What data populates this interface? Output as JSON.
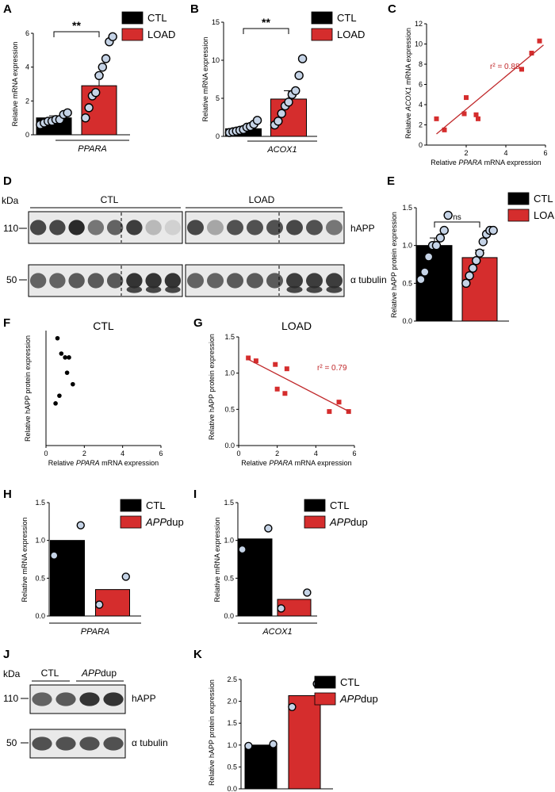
{
  "colors": {
    "ctl": "#000000",
    "case": "#d52d2d",
    "dot_fill": "#c5d3e6",
    "reg": "#c0282a",
    "blot_dark": "#2a2a2a",
    "blot_bg": "#e9e9e9"
  },
  "chart_data": [
    {
      "id": "A",
      "panel_label": "A",
      "type": "bar",
      "categories": [
        "CTL",
        "LOAD"
      ],
      "values": [
        1.0,
        2.9
      ],
      "errors": [
        0.12,
        0.65
      ],
      "points": [
        [
          0.6,
          0.7,
          0.8,
          0.8,
          0.9,
          0.9,
          1.2,
          1.3
        ],
        [
          1.0,
          1.6,
          2.3,
          2.5,
          3.5,
          4.0,
          4.5,
          5.5,
          5.8
        ]
      ],
      "ylabel": "Relative  mRNA expression",
      "xlabel": "PPARA",
      "ylim": [
        0,
        6
      ],
      "yticks": [
        0,
        2,
        4,
        6
      ],
      "significance": "**",
      "legend": [
        "CTL",
        "LOAD"
      ]
    },
    {
      "id": "B",
      "panel_label": "B",
      "type": "bar",
      "categories": [
        "CTL",
        "LOAD"
      ],
      "values": [
        1.0,
        4.9
      ],
      "errors": [
        0.15,
        1.1
      ],
      "points": [
        [
          0.5,
          0.6,
          0.7,
          0.8,
          0.9,
          1.2,
          1.3,
          1.6,
          2.1
        ],
        [
          1.5,
          2.0,
          3.0,
          4.0,
          4.5,
          5.5,
          6.0,
          8.0,
          10.2
        ]
      ],
      "ylabel": "Relative  mRNA expression",
      "xlabel": "ACOX1",
      "ylim": [
        0,
        15
      ],
      "yticks": [
        0,
        5,
        10,
        15
      ],
      "significance": "**",
      "legend": [
        "CTL",
        "LOAD"
      ]
    },
    {
      "id": "C",
      "panel_label": "C",
      "type": "scatter",
      "x": [
        0.5,
        0.9,
        1.9,
        2.0,
        2.5,
        2.6,
        4.8,
        5.3,
        5.7
      ],
      "y": [
        2.6,
        1.5,
        3.1,
        4.7,
        3.0,
        2.6,
        7.5,
        9.1,
        10.3
      ],
      "regression": [
        [
          0.5,
          1.1
        ],
        [
          5.9,
          9.9
        ]
      ],
      "annotation": "r² = 0.88",
      "ylabel": "Relative ACOX1 mRNA expression",
      "xlabel": "Relative PPARA mRNA expression",
      "xlim": [
        0,
        6
      ],
      "ylim": [
        0,
        12
      ],
      "xticks": [
        2,
        4,
        6
      ],
      "yticks": [
        0,
        2,
        4,
        6,
        8,
        10,
        12
      ]
    },
    {
      "id": "E",
      "panel_label": "E",
      "type": "bar",
      "categories": [
        "CTL",
        "LOAD"
      ],
      "values": [
        1.0,
        0.84
      ],
      "errors": [
        0.1,
        0.1
      ],
      "points": [
        [
          0.55,
          0.65,
          0.85,
          1.0,
          1.0,
          1.1,
          1.2,
          1.4
        ],
        [
          0.5,
          0.6,
          0.7,
          0.8,
          0.9,
          1.05,
          1.15,
          1.2,
          1.2
        ]
      ],
      "ylabel": "Relative hAPP protein expression",
      "ylim": [
        0,
        1.5
      ],
      "yticks": [
        0.0,
        0.5,
        1.0,
        1.5
      ],
      "significance": "ns",
      "legend": [
        "CTL",
        "LOAD"
      ]
    },
    {
      "id": "F",
      "panel_label": "F",
      "type": "scatter",
      "title": "CTL",
      "x": [
        0.5,
        0.6,
        0.7,
        0.8,
        1.0,
        1.1,
        1.2,
        1.4
      ],
      "y": [
        0.55,
        1.4,
        0.65,
        1.2,
        1.15,
        0.95,
        1.15,
        0.8
      ],
      "ylabel": "Relative hAPP protein expression",
      "xlabel": "Relative PPARA mRNA expression",
      "xlim": [
        0,
        6
      ],
      "xticks": [
        0,
        2,
        4,
        6
      ]
    },
    {
      "id": "G",
      "panel_label": "G",
      "type": "scatter",
      "title": "LOAD",
      "x": [
        0.5,
        0.9,
        1.9,
        2.0,
        2.4,
        2.5,
        4.7,
        5.2,
        5.7
      ],
      "y": [
        1.21,
        1.17,
        1.12,
        0.78,
        0.72,
        1.06,
        0.47,
        0.6,
        0.47
      ],
      "regression": [
        [
          0.5,
          1.19
        ],
        [
          5.8,
          0.46
        ]
      ],
      "annotation": "r² = 0.79",
      "ylabel": "Relative hAPP protein expression",
      "xlabel": "Relative PPARA mRNA expression",
      "xlim": [
        0,
        6
      ],
      "ylim": [
        0,
        1.5
      ],
      "xticks": [
        0,
        2,
        4,
        6
      ],
      "yticks": [
        0.0,
        0.5,
        1.0,
        1.5
      ]
    },
    {
      "id": "H",
      "panel_label": "H",
      "type": "bar",
      "categories": [
        "CTL",
        "APPdup"
      ],
      "values": [
        1.0,
        0.35
      ],
      "errors": [
        0,
        0
      ],
      "points": [
        [
          0.8,
          1.2
        ],
        [
          0.15,
          0.52
        ]
      ],
      "ylabel": "Relative mRNA expression",
      "xlabel": "PPARA",
      "ylim": [
        0,
        1.5
      ],
      "yticks": [
        0.0,
        0.5,
        1.0,
        1.5
      ],
      "legend": [
        "CTL",
        "APPdup"
      ]
    },
    {
      "id": "I",
      "panel_label": "I",
      "type": "bar",
      "categories": [
        "CTL",
        "APPdup"
      ],
      "values": [
        1.02,
        0.22
      ],
      "errors": [
        0,
        0
      ],
      "points": [
        [
          0.88,
          1.16
        ],
        [
          0.1,
          0.31
        ]
      ],
      "ylabel": "Relative mRNA expression",
      "xlabel": "ACOX1",
      "ylim": [
        0,
        1.5
      ],
      "yticks": [
        0.0,
        0.5,
        1.0,
        1.5
      ],
      "legend": [
        "CTL",
        "APPdup"
      ]
    },
    {
      "id": "K",
      "panel_label": "K",
      "type": "bar",
      "categories": [
        "CTL",
        "APPdup"
      ],
      "values": [
        1.0,
        2.13
      ],
      "errors": [
        0,
        0
      ],
      "points": [
        [
          0.98,
          1.02
        ],
        [
          1.87,
          2.4
        ]
      ],
      "ylabel": "Relative hAPP protein expression",
      "ylim": [
        0,
        2.5
      ],
      "yticks": [
        0.0,
        0.5,
        1.0,
        1.5,
        2.0,
        2.5
      ],
      "legend": [
        "CTL",
        "APPdup"
      ]
    }
  ],
  "blots": {
    "D": {
      "panel_label": "D",
      "kda_label": "kDa",
      "group_labels": [
        "CTL",
        "LOAD"
      ],
      "row_labels": [
        "hAPP",
        "α tubulin"
      ],
      "markers": [
        "110",
        "50"
      ],
      "lanes_per_group": 8
    },
    "J": {
      "panel_label": "J",
      "kda_label": "kDa",
      "group_labels": [
        "CTL",
        "APPdup"
      ],
      "row_labels": [
        "hAPP",
        "α tubulin"
      ],
      "markers": [
        "110",
        "50"
      ],
      "lanes_per_group": 2
    }
  }
}
